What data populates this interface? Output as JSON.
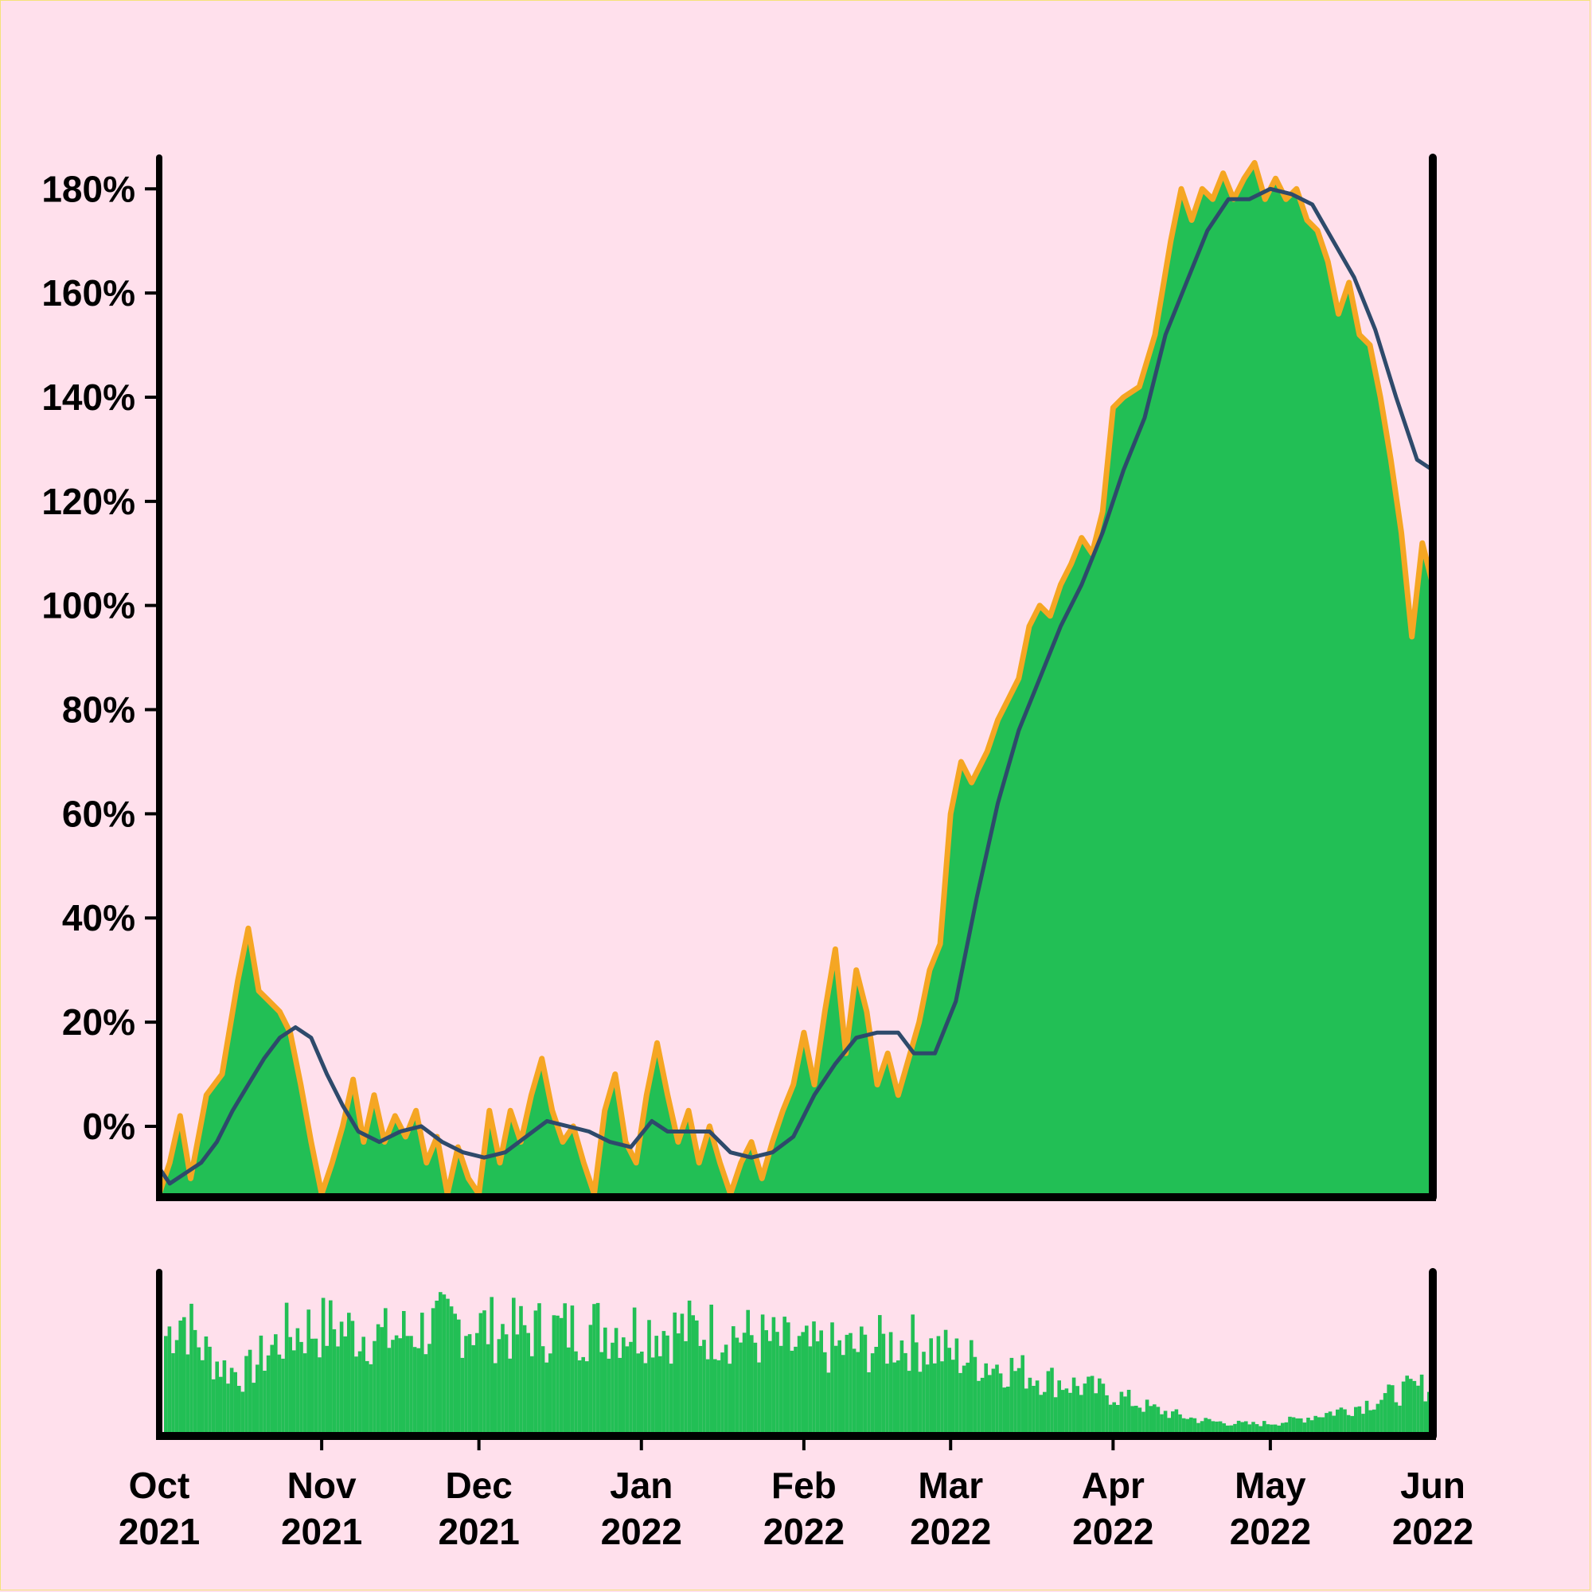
{
  "chart_data": {
    "type": "area",
    "x_range": [
      "2021-10-01",
      "2022-06-01"
    ],
    "y_axis": {
      "ticks": [
        0,
        20,
        40,
        60,
        80,
        100,
        120,
        140,
        160,
        180
      ],
      "tick_labels": [
        "0%",
        "20%",
        "40%",
        "60%",
        "80%",
        "100%",
        "120%",
        "140%",
        "160%",
        "180%"
      ],
      "ylim": [
        -13,
        186
      ]
    },
    "x_axis": {
      "ticks": [
        "2021-10-01",
        "2021-11-01",
        "2021-12-01",
        "2022-01-01",
        "2022-02-01",
        "2022-03-01",
        "2022-04-01",
        "2022-05-01",
        "2022-06-01"
      ],
      "tick_labels": [
        [
          "Oct",
          "2021"
        ],
        [
          "Nov",
          "2021"
        ],
        [
          "Dec",
          "2021"
        ],
        [
          "Jan",
          "2022"
        ],
        [
          "Feb",
          "2022"
        ],
        [
          "Mar",
          "2022"
        ],
        [
          "Apr",
          "2022"
        ],
        [
          "May",
          "2022"
        ],
        [
          "Jun",
          "2022"
        ]
      ]
    },
    "daily_series": {
      "color": "#f5a623",
      "fill": "#22bf55",
      "points": [
        [
          "2021-10-01",
          -13
        ],
        [
          "2021-10-03",
          -7
        ],
        [
          "2021-10-05",
          2
        ],
        [
          "2021-10-07",
          -10
        ],
        [
          "2021-10-10",
          6
        ],
        [
          "2021-10-13",
          10
        ],
        [
          "2021-10-16",
          28
        ],
        [
          "2021-10-18",
          38
        ],
        [
          "2021-10-20",
          26
        ],
        [
          "2021-10-22",
          24
        ],
        [
          "2021-10-24",
          22
        ],
        [
          "2021-10-26",
          18
        ],
        [
          "2021-10-28",
          8
        ],
        [
          "2021-10-30",
          -3
        ],
        [
          "2021-11-01",
          -13
        ],
        [
          "2021-11-03",
          -7
        ],
        [
          "2021-11-05",
          0
        ],
        [
          "2021-11-07",
          9
        ],
        [
          "2021-11-09",
          -3
        ],
        [
          "2021-11-11",
          6
        ],
        [
          "2021-11-13",
          -3
        ],
        [
          "2021-11-15",
          2
        ],
        [
          "2021-11-17",
          -2
        ],
        [
          "2021-11-19",
          3
        ],
        [
          "2021-11-21",
          -7
        ],
        [
          "2021-11-23",
          -2
        ],
        [
          "2021-11-25",
          -13
        ],
        [
          "2021-11-27",
          -4
        ],
        [
          "2021-11-29",
          -10
        ],
        [
          "2021-12-01",
          -13
        ],
        [
          "2021-12-03",
          3
        ],
        [
          "2021-12-05",
          -7
        ],
        [
          "2021-12-07",
          3
        ],
        [
          "2021-12-09",
          -3
        ],
        [
          "2021-12-11",
          6
        ],
        [
          "2021-12-13",
          13
        ],
        [
          "2021-12-15",
          3
        ],
        [
          "2021-12-17",
          -3
        ],
        [
          "2021-12-19",
          0
        ],
        [
          "2021-12-21",
          -7
        ],
        [
          "2021-12-23",
          -13
        ],
        [
          "2021-12-25",
          3
        ],
        [
          "2021-12-27",
          10
        ],
        [
          "2021-12-29",
          -3
        ],
        [
          "2021-12-31",
          -7
        ],
        [
          "2022-01-02",
          6
        ],
        [
          "2022-01-04",
          16
        ],
        [
          "2022-01-06",
          6
        ],
        [
          "2022-01-08",
          -3
        ],
        [
          "2022-01-10",
          3
        ],
        [
          "2022-01-12",
          -7
        ],
        [
          "2022-01-14",
          0
        ],
        [
          "2022-01-16",
          -7
        ],
        [
          "2022-01-18",
          -13
        ],
        [
          "2022-01-20",
          -7
        ],
        [
          "2022-01-22",
          -3
        ],
        [
          "2022-01-24",
          -10
        ],
        [
          "2022-01-26",
          -3
        ],
        [
          "2022-01-28",
          3
        ],
        [
          "2022-01-30",
          8
        ],
        [
          "2022-02-01",
          18
        ],
        [
          "2022-02-03",
          8
        ],
        [
          "2022-02-05",
          22
        ],
        [
          "2022-02-07",
          34
        ],
        [
          "2022-02-09",
          14
        ],
        [
          "2022-02-11",
          30
        ],
        [
          "2022-02-13",
          22
        ],
        [
          "2022-02-15",
          8
        ],
        [
          "2022-02-17",
          14
        ],
        [
          "2022-02-19",
          6
        ],
        [
          "2022-02-21",
          13
        ],
        [
          "2022-02-23",
          20
        ],
        [
          "2022-02-25",
          30
        ],
        [
          "2022-02-27",
          35
        ],
        [
          "2022-03-01",
          60
        ],
        [
          "2022-03-03",
          70
        ],
        [
          "2022-03-05",
          66
        ],
        [
          "2022-03-08",
          72
        ],
        [
          "2022-03-10",
          78
        ],
        [
          "2022-03-12",
          82
        ],
        [
          "2022-03-14",
          86
        ],
        [
          "2022-03-16",
          96
        ],
        [
          "2022-03-18",
          100
        ],
        [
          "2022-03-20",
          98
        ],
        [
          "2022-03-22",
          104
        ],
        [
          "2022-03-24",
          108
        ],
        [
          "2022-03-26",
          113
        ],
        [
          "2022-03-28",
          110
        ],
        [
          "2022-03-30",
          118
        ],
        [
          "2022-04-01",
          138
        ],
        [
          "2022-04-03",
          140
        ],
        [
          "2022-04-06",
          142
        ],
        [
          "2022-04-09",
          152
        ],
        [
          "2022-04-12",
          170
        ],
        [
          "2022-04-14",
          180
        ],
        [
          "2022-04-16",
          174
        ],
        [
          "2022-04-18",
          180
        ],
        [
          "2022-04-20",
          178
        ],
        [
          "2022-04-22",
          183
        ],
        [
          "2022-04-24",
          178
        ],
        [
          "2022-04-26",
          182
        ],
        [
          "2022-04-28",
          185
        ],
        [
          "2022-04-30",
          178
        ],
        [
          "2022-05-02",
          182
        ],
        [
          "2022-05-04",
          178
        ],
        [
          "2022-05-06",
          180
        ],
        [
          "2022-05-08",
          174
        ],
        [
          "2022-05-10",
          172
        ],
        [
          "2022-05-12",
          166
        ],
        [
          "2022-05-14",
          156
        ],
        [
          "2022-05-16",
          162
        ],
        [
          "2022-05-18",
          152
        ],
        [
          "2022-05-20",
          150
        ],
        [
          "2022-05-22",
          140
        ],
        [
          "2022-05-24",
          128
        ],
        [
          "2022-05-26",
          114
        ],
        [
          "2022-05-28",
          94
        ],
        [
          "2022-05-30",
          112
        ],
        [
          "2022-06-01",
          104
        ]
      ]
    },
    "smoothed_series": {
      "color": "#2e4a6b",
      "points": [
        [
          "2021-10-01",
          -8
        ],
        [
          "2021-10-03",
          -11
        ],
        [
          "2021-10-06",
          -9
        ],
        [
          "2021-10-09",
          -7
        ],
        [
          "2021-10-12",
          -3
        ],
        [
          "2021-10-15",
          3
        ],
        [
          "2021-10-18",
          8
        ],
        [
          "2021-10-21",
          13
        ],
        [
          "2021-10-24",
          17
        ],
        [
          "2021-10-27",
          19
        ],
        [
          "2021-10-30",
          17
        ],
        [
          "2021-11-02",
          10
        ],
        [
          "2021-11-05",
          4
        ],
        [
          "2021-11-08",
          -1
        ],
        [
          "2021-11-12",
          -3
        ],
        [
          "2021-11-16",
          -1
        ],
        [
          "2021-11-20",
          0
        ],
        [
          "2021-11-24",
          -3
        ],
        [
          "2021-11-28",
          -5
        ],
        [
          "2021-12-02",
          -6
        ],
        [
          "2021-12-06",
          -5
        ],
        [
          "2021-12-10",
          -2
        ],
        [
          "2021-12-14",
          1
        ],
        [
          "2021-12-18",
          0
        ],
        [
          "2021-12-22",
          -1
        ],
        [
          "2021-12-26",
          -3
        ],
        [
          "2021-12-30",
          -4
        ],
        [
          "2022-01-03",
          1
        ],
        [
          "2022-01-06",
          -1
        ],
        [
          "2022-01-10",
          -1
        ],
        [
          "2022-01-14",
          -1
        ],
        [
          "2022-01-18",
          -5
        ],
        [
          "2022-01-22",
          -6
        ],
        [
          "2022-01-26",
          -5
        ],
        [
          "2022-01-30",
          -2
        ],
        [
          "2022-02-03",
          6
        ],
        [
          "2022-02-07",
          12
        ],
        [
          "2022-02-11",
          17
        ],
        [
          "2022-02-15",
          18
        ],
        [
          "2022-02-19",
          18
        ],
        [
          "2022-02-22",
          14
        ],
        [
          "2022-02-26",
          14
        ],
        [
          "2022-03-02",
          24
        ],
        [
          "2022-03-06",
          44
        ],
        [
          "2022-03-10",
          62
        ],
        [
          "2022-03-14",
          76
        ],
        [
          "2022-03-18",
          86
        ],
        [
          "2022-03-22",
          96
        ],
        [
          "2022-03-26",
          104
        ],
        [
          "2022-03-30",
          114
        ],
        [
          "2022-04-03",
          126
        ],
        [
          "2022-04-07",
          136
        ],
        [
          "2022-04-11",
          152
        ],
        [
          "2022-04-15",
          162
        ],
        [
          "2022-04-19",
          172
        ],
        [
          "2022-04-23",
          178
        ],
        [
          "2022-04-27",
          178
        ],
        [
          "2022-05-01",
          180
        ],
        [
          "2022-05-05",
          179
        ],
        [
          "2022-05-09",
          177
        ],
        [
          "2022-05-13",
          170
        ],
        [
          "2022-05-17",
          163
        ],
        [
          "2022-05-21",
          153
        ],
        [
          "2022-05-25",
          140
        ],
        [
          "2022-05-29",
          128
        ],
        [
          "2022-06-01",
          126
        ]
      ]
    },
    "volume_series": {
      "color": "#22bf55",
      "points": [
        [
          "2021-10-01",
          0.63
        ],
        [
          "2021-10-05",
          0.82
        ],
        [
          "2021-10-09",
          0.58
        ],
        [
          "2021-10-13",
          0.45
        ],
        [
          "2021-10-17",
          0.4
        ],
        [
          "2021-10-21",
          0.55
        ],
        [
          "2021-10-25",
          0.68
        ],
        [
          "2021-10-29",
          0.72
        ],
        [
          "2021-11-03",
          0.73
        ],
        [
          "2021-11-08",
          0.69
        ],
        [
          "2021-11-13",
          0.66
        ],
        [
          "2021-11-18",
          0.7
        ],
        [
          "2021-11-23",
          0.74
        ],
        [
          "2021-11-28",
          0.76
        ],
        [
          "2021-12-03",
          0.72
        ],
        [
          "2021-12-08",
          0.7
        ],
        [
          "2021-12-13",
          0.71
        ],
        [
          "2021-12-18",
          0.72
        ],
        [
          "2021-12-23",
          0.73
        ],
        [
          "2021-12-28",
          0.73
        ],
        [
          "2022-01-02",
          0.72
        ],
        [
          "2022-01-07",
          0.71
        ],
        [
          "2022-01-12",
          0.71
        ],
        [
          "2022-01-17",
          0.7
        ],
        [
          "2022-01-22",
          0.66
        ],
        [
          "2022-01-27",
          0.62
        ],
        [
          "2022-02-01",
          0.58
        ],
        [
          "2022-02-06",
          0.58
        ],
        [
          "2022-02-11",
          0.58
        ],
        [
          "2022-02-16",
          0.62
        ],
        [
          "2022-02-21",
          0.63
        ],
        [
          "2022-02-26",
          0.58
        ],
        [
          "2022-03-03",
          0.52
        ],
        [
          "2022-03-08",
          0.48
        ],
        [
          "2022-03-13",
          0.44
        ],
        [
          "2022-03-18",
          0.38
        ],
        [
          "2022-03-23",
          0.34
        ],
        [
          "2022-03-28",
          0.3
        ],
        [
          "2022-04-02",
          0.25
        ],
        [
          "2022-04-07",
          0.18
        ],
        [
          "2022-04-12",
          0.13
        ],
        [
          "2022-04-17",
          0.09
        ],
        [
          "2022-04-22",
          0.07
        ],
        [
          "2022-04-27",
          0.06
        ],
        [
          "2022-05-02",
          0.07
        ],
        [
          "2022-05-07",
          0.1
        ],
        [
          "2022-05-12",
          0.14
        ],
        [
          "2022-05-17",
          0.18
        ],
        [
          "2022-05-22",
          0.24
        ],
        [
          "2022-05-27",
          0.3
        ],
        [
          "2022-06-01",
          0.33
        ]
      ]
    },
    "grid": false,
    "legend": "none"
  }
}
